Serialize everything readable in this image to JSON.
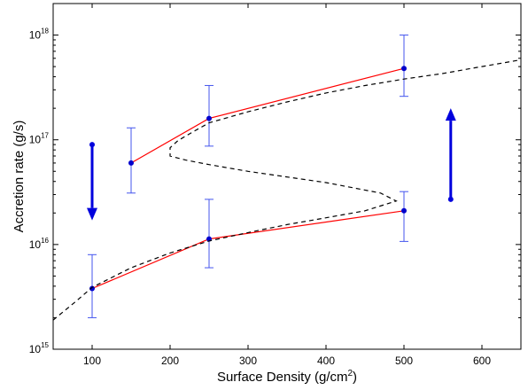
{
  "chart_data": {
    "type": "line",
    "xlabel": "Surface Density (g/cm",
    "xlabel_sup": "2",
    "xlabel_end": ")",
    "ylabel": "Accretion rate (g/s)",
    "xlim": [
      50,
      650
    ],
    "ylim": [
      1000000000000000.0,
      2e+18
    ],
    "yscale": "log",
    "grid": false,
    "x_ticks": [
      100,
      200,
      300,
      400,
      500,
      600
    ],
    "x_tick_labels": [
      "100",
      "200",
      "300",
      "400",
      "500",
      "600"
    ],
    "y_ticks": [
      1000000000000000.0,
      1e+16,
      1e+17,
      1e+18
    ],
    "y_tick_labels": [
      {
        "base": "10",
        "exp": "15"
      },
      {
        "base": "10",
        "exp": "16"
      },
      {
        "base": "10",
        "exp": "17"
      },
      {
        "base": "10",
        "exp": "18"
      }
    ],
    "series": [
      {
        "style": "red-solid-with-points",
        "color": "#ff0000",
        "marker_color": "#0000cc",
        "x": [
          150,
          250,
          500
        ],
        "y": [
          6e+16,
          1.6e+17,
          4.8e+17
        ],
        "yerr_low": [
          3.1e+16,
          8.7e+16,
          2.6e+17
        ],
        "yerr_high": [
          1.3e+17,
          3.3e+17,
          1e+18
        ]
      },
      {
        "style": "red-solid-with-points",
        "color": "#ff0000",
        "marker_color": "#0000cc",
        "x": [
          100,
          250,
          500
        ],
        "y": [
          3800000000000000.0,
          1.13e+16,
          2.1e+16
        ],
        "yerr_low": [
          2000000000000000.0,
          6000000000000000.0,
          1.07e+16
        ],
        "yerr_high": [
          8000000000000000.0,
          2.7e+16,
          3.2e+16
        ]
      },
      {
        "style": "black-dashed-s-curve",
        "color": "#000000",
        "x": [
          50,
          80,
          100,
          150,
          200,
          250,
          300,
          350,
          400,
          450,
          490,
          470,
          400,
          300,
          250,
          220,
          200,
          200,
          210,
          230,
          250,
          300,
          350,
          400,
          450,
          500,
          550,
          600,
          650
        ],
        "y": [
          1900000000000000.0,
          2900000000000000.0,
          3900000000000000.0,
          6000000000000000.0,
          8300000000000000.0,
          1.08e+16,
          1.3e+16,
          1.55e+16,
          1.8e+16,
          2.1e+16,
          2.6e+16,
          3.1e+16,
          3.9e+16,
          5e+16,
          5.8e+16,
          6.4e+16,
          7e+16,
          8.4e+16,
          9.8e+16,
          1.2e+17,
          1.45e+17,
          1.85e+17,
          2.3e+17,
          2.8e+17,
          3.3e+17,
          3.8e+17,
          4.3e+17,
          5e+17,
          5.8e+17
        ]
      }
    ],
    "arrows": [
      {
        "color": "#0000dd",
        "direction": "down",
        "x": 100,
        "y_from": 9e+16,
        "y_to": 1.7e+16
      },
      {
        "color": "#0000dd",
        "direction": "up",
        "x": 560,
        "y_from": 2.7e+16,
        "y_to": 2e+17
      }
    ]
  }
}
